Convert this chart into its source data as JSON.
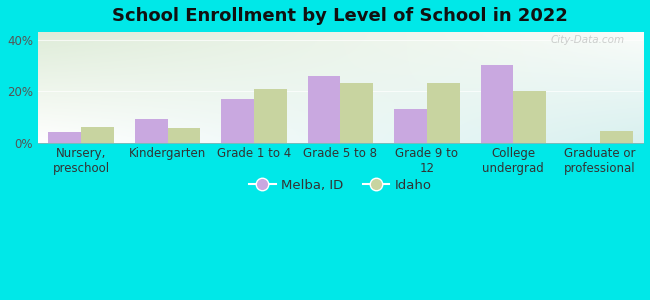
{
  "title": "School Enrollment by Level of School in 2022",
  "categories": [
    "Nursery,\npreschool",
    "Kindergarten",
    "Grade 1 to 4",
    "Grade 5 to 8",
    "Grade 9 to\n12",
    "College\nundergrad",
    "Graduate or\nprofessional"
  ],
  "melba_values": [
    4,
    9,
    17,
    26,
    13,
    30,
    0
  ],
  "idaho_values": [
    6,
    5.5,
    21,
    23,
    23,
    20,
    4.5
  ],
  "melba_color": "#c9a8e0",
  "idaho_color": "#c8d4a0",
  "ylim": [
    0,
    43
  ],
  "yticks": [
    0,
    20,
    40
  ],
  "ytick_labels": [
    "0%",
    "20%",
    "40%"
  ],
  "background_outer": "#00e8e8",
  "background_inner_top_left": "#deecd8",
  "background_inner_bottom_right": "#d8f0ef",
  "legend_labels": [
    "Melba, ID",
    "Idaho"
  ],
  "watermark": "City-Data.com",
  "bar_width": 0.38,
  "title_fontsize": 13,
  "axis_label_fontsize": 8.5
}
